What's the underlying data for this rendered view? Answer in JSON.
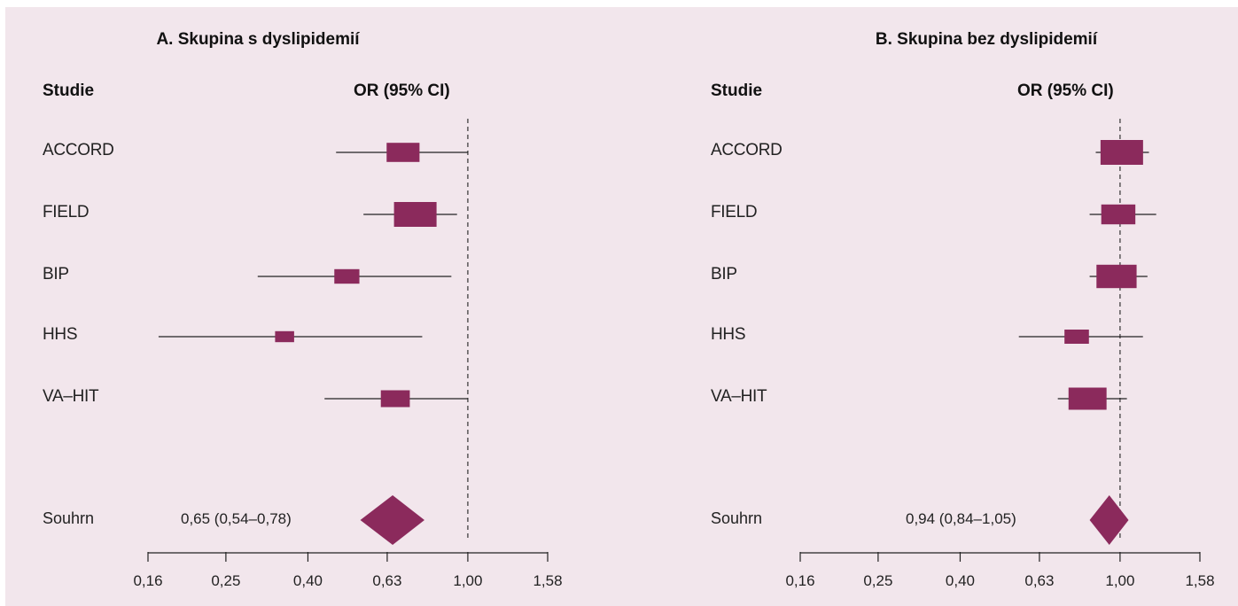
{
  "chart_data": [
    {
      "type": "forest",
      "title": "A. Skupina s dyslipidemií",
      "col_study": "Studie",
      "col_or": "OR (95% CI)",
      "xscale": "log",
      "xlim": [
        0.16,
        1.58
      ],
      "ticks": [
        0.16,
        0.25,
        0.4,
        0.63,
        1.0,
        1.58
      ],
      "tick_labels": [
        "0,16",
        "0,25",
        "0,40",
        "0,63",
        "1,00",
        "1,58"
      ],
      "reference_line": 1.0,
      "color": "#8b2a5c",
      "studies": [
        {
          "name": "ACCORD",
          "or": 0.69,
          "lo": 0.47,
          "hi": 1.0,
          "weight": 0.68
        },
        {
          "name": "FIELD",
          "or": 0.74,
          "lo": 0.55,
          "hi": 0.94,
          "weight": 1.0
        },
        {
          "name": "BIP",
          "or": 0.5,
          "lo": 0.3,
          "hi": 0.91,
          "weight": 0.42
        },
        {
          "name": "HHS",
          "or": 0.35,
          "lo": 0.17,
          "hi": 0.77,
          "weight": 0.22
        },
        {
          "name": "VA–HIT",
          "or": 0.66,
          "lo": 0.44,
          "hi": 1.0,
          "weight": 0.55
        }
      ],
      "summary": {
        "label": "Souhrn",
        "text": "0,65 (0,54–0,78)",
        "or": 0.65,
        "lo": 0.54,
        "hi": 0.78
      }
    },
    {
      "type": "forest",
      "title": "B. Skupina bez dyslipidemií",
      "col_study": "Studie",
      "col_or": "OR (95% CI)",
      "xscale": "log",
      "xlim": [
        0.16,
        1.58
      ],
      "ticks": [
        0.16,
        0.25,
        0.4,
        0.63,
        1.0,
        1.58
      ],
      "tick_labels": [
        "0,16",
        "0,25",
        "0,40",
        "0,63",
        "1,00",
        "1,58"
      ],
      "reference_line": 1.0,
      "color": "#8b2a5c",
      "studies": [
        {
          "name": "ACCORD",
          "or": 1.01,
          "lo": 0.87,
          "hi": 1.18,
          "weight": 1.0
        },
        {
          "name": "FIELD",
          "or": 0.99,
          "lo": 0.84,
          "hi": 1.23,
          "weight": 0.72
        },
        {
          "name": "BIP",
          "or": 0.98,
          "lo": 0.84,
          "hi": 1.17,
          "weight": 0.92
        },
        {
          "name": "HHS",
          "or": 0.78,
          "lo": 0.56,
          "hi": 1.14,
          "weight": 0.4
        },
        {
          "name": "VA–HIT",
          "or": 0.83,
          "lo": 0.7,
          "hi": 1.04,
          "weight": 0.85
        }
      ],
      "summary": {
        "label": "Souhrn",
        "text": "0,94 (0,84–1,05)",
        "or": 0.94,
        "lo": 0.84,
        "hi": 1.05
      }
    }
  ]
}
